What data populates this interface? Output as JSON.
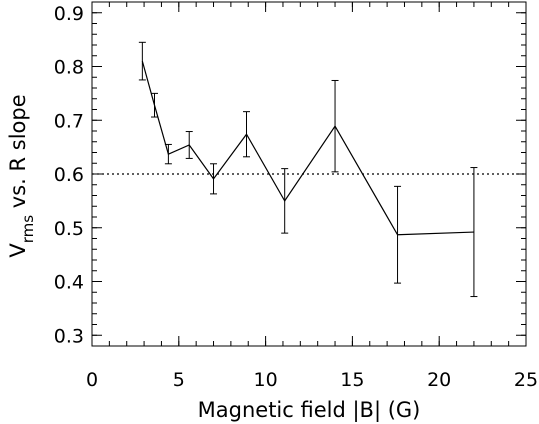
{
  "chart_data": {
    "type": "line",
    "xlabel": "Magnetic field |B| (G)",
    "ylabel_main": "V",
    "ylabel_sub": "rms",
    "ylabel_rest": " vs. R slope",
    "xlim": [
      0,
      25
    ],
    "ylim": [
      0.28,
      0.92
    ],
    "x_major_ticks": [
      0,
      5,
      10,
      15,
      20,
      25
    ],
    "x_tick_labels": [
      "0",
      "5",
      "10",
      "15",
      "20",
      "25"
    ],
    "x_minor_step": 1,
    "y_major_ticks": [
      0.3,
      0.4,
      0.5,
      0.6,
      0.7,
      0.8,
      0.9
    ],
    "y_tick_labels": [
      "0.3",
      "0.4",
      "0.5",
      "0.6",
      "0.7",
      "0.8",
      "0.9"
    ],
    "y_minor_step": 0.02,
    "reference_line": {
      "y": 0.6,
      "style": "dotted"
    },
    "grid": false,
    "series": [
      {
        "x": [
          2.9,
          3.6,
          4.4,
          5.6,
          7.0,
          8.9,
          11.1,
          14.0,
          17.6,
          22.0
        ],
        "y": [
          0.81,
          0.728,
          0.637,
          0.654,
          0.591,
          0.674,
          0.55,
          0.689,
          0.487,
          0.492
        ],
        "yerr_low": [
          0.035,
          0.022,
          0.018,
          0.025,
          0.028,
          0.042,
          0.06,
          0.085,
          0.09,
          0.12
        ],
        "yerr_high": [
          0.035,
          0.022,
          0.018,
          0.025,
          0.028,
          0.042,
          0.06,
          0.085,
          0.09,
          0.12
        ]
      }
    ]
  }
}
